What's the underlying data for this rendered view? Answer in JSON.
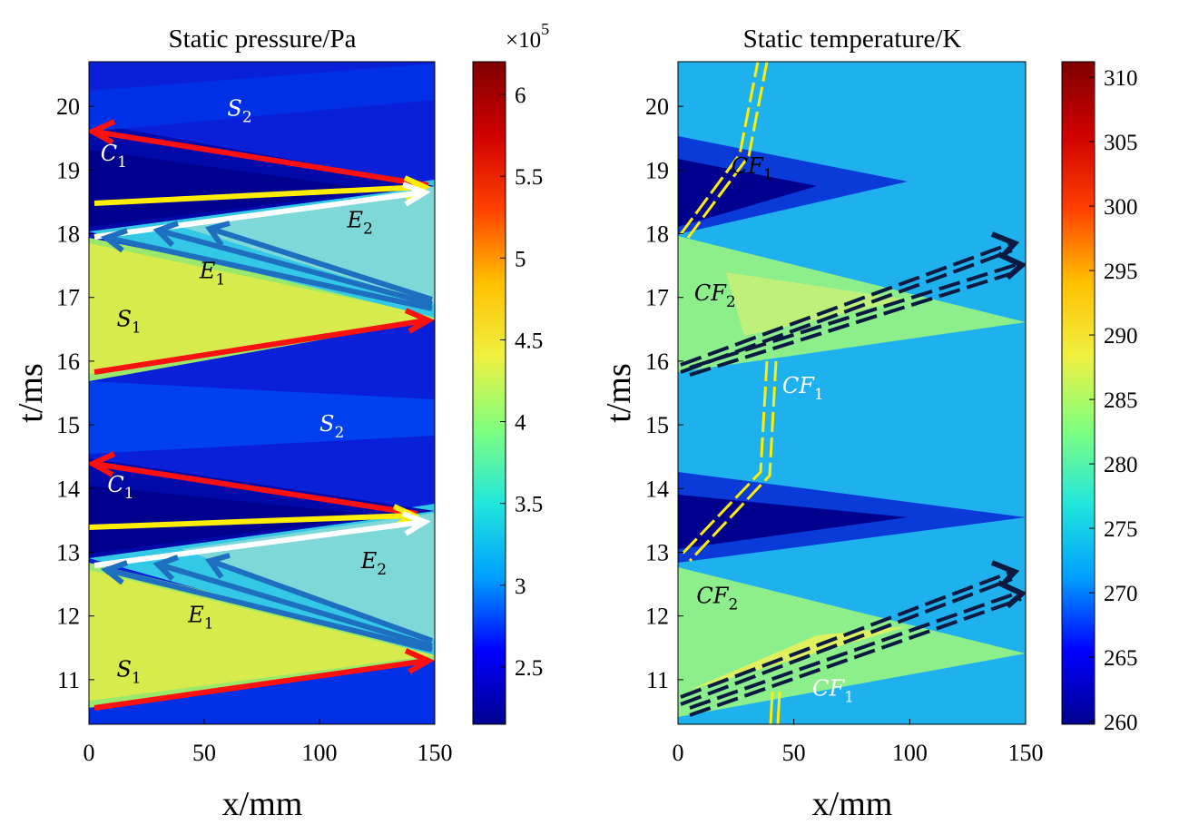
{
  "chart_data": [
    {
      "type": "heatmap",
      "title": "Static pressure/Pa",
      "xlabel": "x/mm",
      "ylabel": "t/ms",
      "xlim": [
        0,
        150
      ],
      "ylim": [
        10.3,
        20.7
      ],
      "x_ticks": [
        "0",
        "50",
        "100",
        "150"
      ],
      "y_ticks": [
        "11",
        "12",
        "13",
        "14",
        "15",
        "16",
        "17",
        "18",
        "19",
        "20"
      ],
      "colorbar": {
        "range": [
          2.15,
          6.2
        ],
        "exponent_label": "×10",
        "exponent_power": "5",
        "ticks": [
          "2.5",
          "3",
          "3.5",
          "4",
          "4.5",
          "5",
          "5.5",
          "6"
        ]
      },
      "colormap": [
        "#00008f",
        "#0000ff",
        "#00a0ff",
        "#22e6dc",
        "#7fff7f",
        "#f0f040",
        "#ffc000",
        "#ff4000",
        "#d00000",
        "#800000"
      ],
      "annotations": [
        {
          "base": "S",
          "sub": "2",
          "x": 60,
          "t": 19.85,
          "color": "#ffffff"
        },
        {
          "base": "C",
          "sub": "1",
          "x": 5,
          "t": 19.15,
          "color": "#ffffff"
        },
        {
          "base": "E",
          "sub": "2",
          "x": 112,
          "t": 18.1,
          "color": "#000000"
        },
        {
          "base": "E",
          "sub": "1",
          "x": 48,
          "t": 17.3,
          "color": "#000000"
        },
        {
          "base": "S",
          "sub": "1",
          "x": 12,
          "t": 16.55,
          "color": "#000000"
        },
        {
          "base": "S",
          "sub": "2",
          "x": 100,
          "t": 14.9,
          "color": "#ffffff"
        },
        {
          "base": "C",
          "sub": "1",
          "x": 8,
          "t": 13.95,
          "color": "#ffffff"
        },
        {
          "base": "E",
          "sub": "2",
          "x": 118,
          "t": 12.75,
          "color": "#000000"
        },
        {
          "base": "E",
          "sub": "1",
          "x": 43,
          "t": 11.9,
          "color": "#000000"
        },
        {
          "base": "S",
          "sub": "1",
          "x": 12,
          "t": 11.05,
          "color": "#000000"
        }
      ]
    },
    {
      "type": "heatmap",
      "title": "Static temperature/K",
      "xlabel": "x/mm",
      "ylabel": "t/ms",
      "xlim": [
        0,
        150
      ],
      "ylim": [
        10.3,
        20.7
      ],
      "x_ticks": [
        "0",
        "50",
        "100",
        "150"
      ],
      "y_ticks": [
        "11",
        "12",
        "13",
        "14",
        "15",
        "16",
        "17",
        "18",
        "19",
        "20"
      ],
      "colorbar": {
        "range": [
          259.8,
          311.2
        ],
        "ticks": [
          "260",
          "265",
          "270",
          "275",
          "280",
          "285",
          "290",
          "295",
          "300",
          "305",
          "310"
        ]
      },
      "colormap": [
        "#00008f",
        "#0000ff",
        "#00a0ff",
        "#22e6dc",
        "#7fff7f",
        "#f0f040",
        "#ffc000",
        "#ff4000",
        "#d00000",
        "#800000"
      ],
      "annotations": [
        {
          "base": "CF",
          "sub": "1",
          "x": 23,
          "t": 18.95,
          "color": "#000000"
        },
        {
          "base": "CF",
          "sub": "2",
          "x": 7,
          "t": 16.95,
          "color": "#000000"
        },
        {
          "base": "CF",
          "sub": "1",
          "x": 45,
          "t": 15.5,
          "color": "#ffffff"
        },
        {
          "base": "CF",
          "sub": "2",
          "x": 8,
          "t": 12.2,
          "color": "#000000"
        },
        {
          "base": "CF",
          "sub": "1",
          "x": 58,
          "t": 10.75,
          "color": "#ffffff"
        }
      ]
    }
  ]
}
